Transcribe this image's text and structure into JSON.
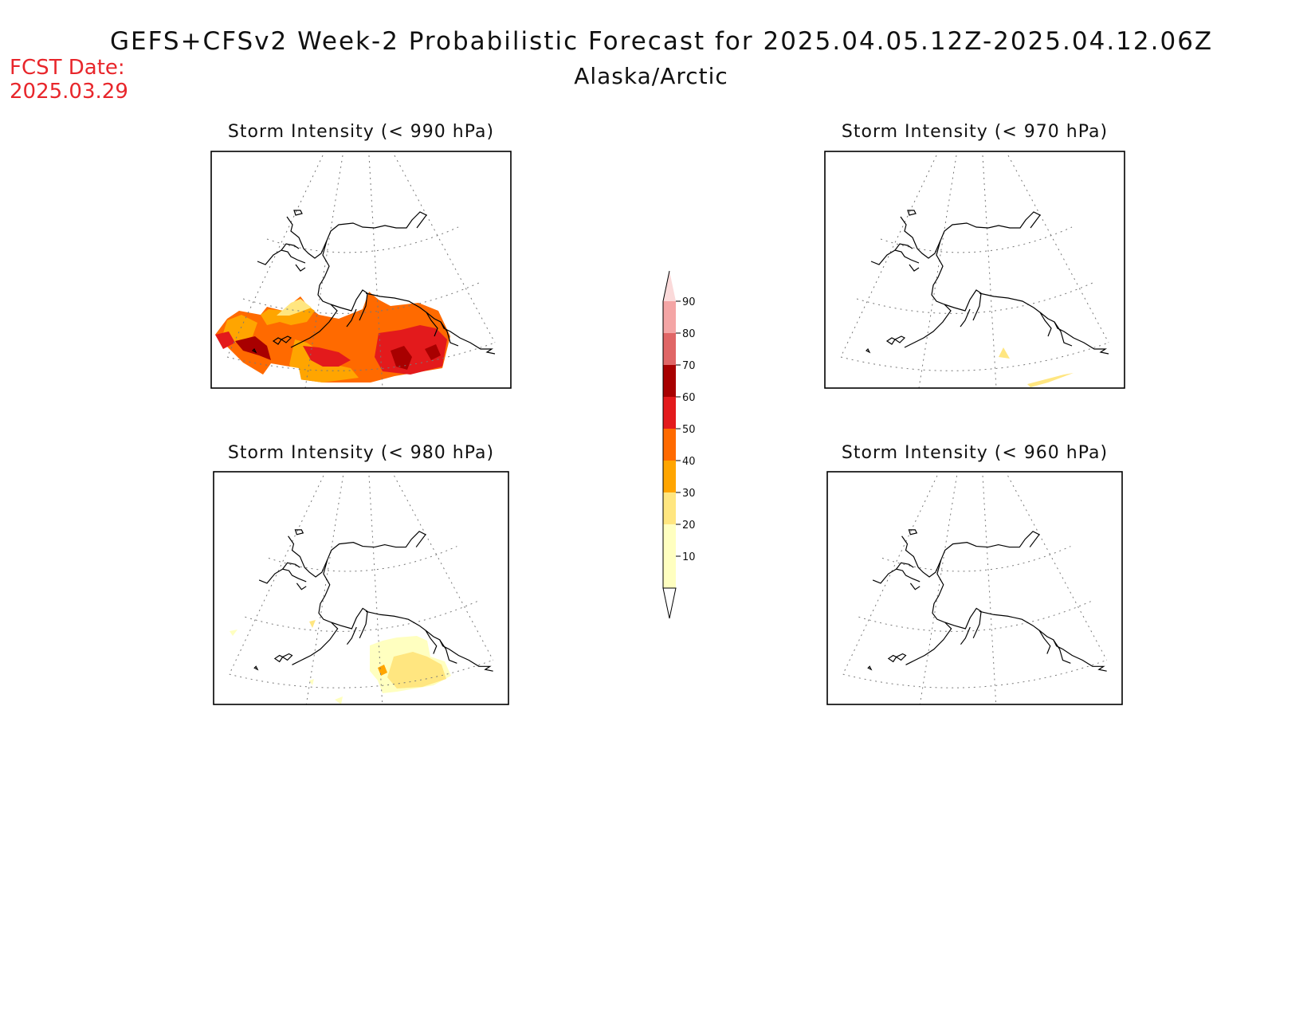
{
  "header": {
    "title": "GEFS+CFSv2 Week-2 Probabilistic Forecast for 2025.04.05.12Z-2025.04.12.06Z",
    "subtitle": "Alaska/Arctic",
    "fcst_label": "FCST Date:",
    "fcst_date": "2025.03.29"
  },
  "panels": [
    {
      "id": "p990",
      "title": "Storm Intensity (< 990 hPa)",
      "threshold_hpa": 990,
      "max_probability_pct": 70
    },
    {
      "id": "p970",
      "title": "Storm Intensity (< 970 hPa)",
      "threshold_hpa": 970,
      "max_probability_pct": 20
    },
    {
      "id": "p980",
      "title": "Storm Intensity (< 980 hPa)",
      "threshold_hpa": 980,
      "max_probability_pct": 30
    },
    {
      "id": "p960",
      "title": "Storm Intensity (< 960 hPa)",
      "threshold_hpa": 960,
      "max_probability_pct": 0
    }
  ],
  "colorbar": {
    "levels": [
      "90",
      "80",
      "70",
      "60",
      "50",
      "40",
      "30",
      "20",
      "10"
    ],
    "colors": [
      "#fbdada",
      "#f4a5a5",
      "#e06666",
      "#a80000",
      "#e31a1c",
      "#ff6a00",
      "#ffa500",
      "#ffe680",
      "#ffffc0"
    ]
  }
}
